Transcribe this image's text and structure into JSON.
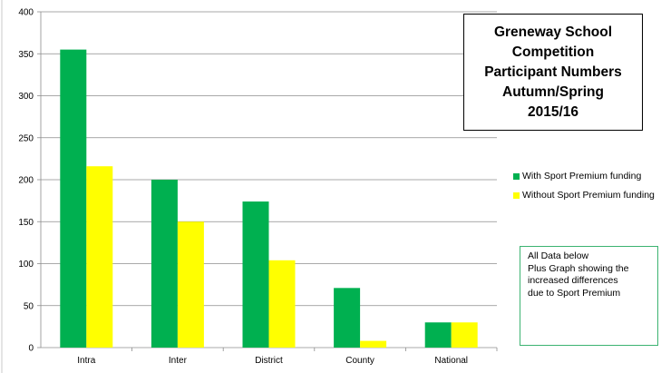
{
  "chart_data": {
    "type": "bar",
    "title": "Greneway School Competition Participant Numbers Autumn/Spring 2015/16",
    "title_lines": [
      "Greneway School",
      "Competition",
      "Participant Numbers",
      "Autumn/Spring",
      "2015/16"
    ],
    "categories": [
      "Intra",
      "Inter",
      "District",
      "County",
      "National"
    ],
    "series": [
      {
        "name": "With Sport Premium funding",
        "color": "#00b050",
        "values": [
          355,
          200,
          174,
          71,
          30
        ]
      },
      {
        "name": "Without Sport Premium funding",
        "color": "#ffff00",
        "values": [
          216,
          150,
          104,
          8,
          30
        ]
      }
    ],
    "ylim": [
      0,
      400
    ],
    "y_ticks": [
      "0",
      "50",
      "100",
      "150",
      "200",
      "250",
      "300",
      "350",
      "400"
    ],
    "xlabel": "",
    "ylabel": "",
    "grid": true,
    "legend_position": "right"
  },
  "note": {
    "lines": [
      "All Data below",
      "Plus Graph showing the",
      "increased differences",
      "due to Sport Premium"
    ]
  }
}
